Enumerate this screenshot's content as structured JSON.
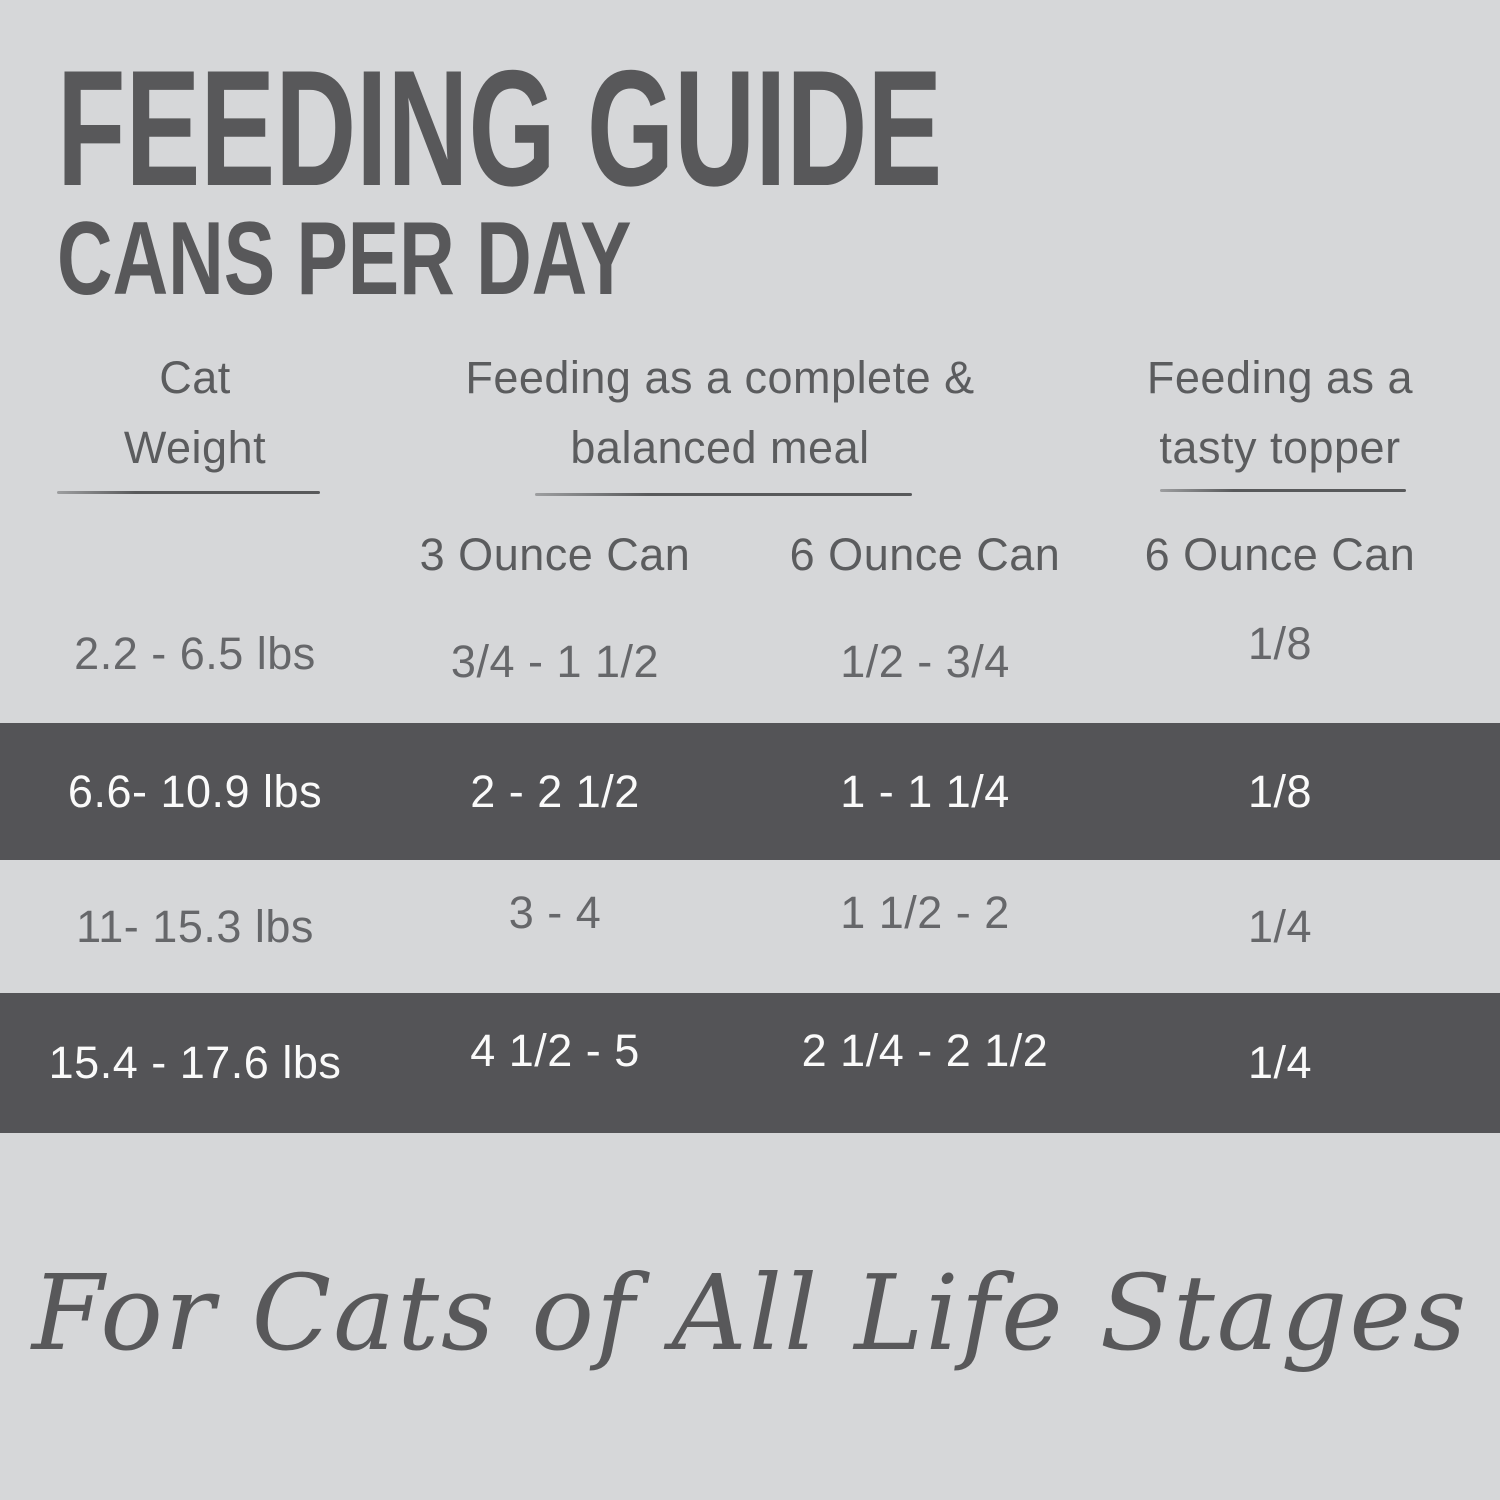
{
  "colors": {
    "bg": "#d6d7d9",
    "band": "#545457",
    "title": "#58585a",
    "header_text": "#5b5c5e",
    "cell_text": "#66676a",
    "cell_text_inverse": "#fafafa",
    "rule": "#58595b"
  },
  "title": {
    "main": "FEEDING GUIDE",
    "subtitle": "CANS PER DAY"
  },
  "table": {
    "group_headers": [
      {
        "lines": [
          "Cat",
          "Weight"
        ]
      },
      {
        "lines": [
          "Feeding as a complete &",
          "balanced meal"
        ]
      },
      {
        "lines": [
          "Feeding as a",
          "tasty topper"
        ]
      }
    ],
    "can_headers": [
      "3 Ounce Can",
      "6 Ounce Can",
      "6 Ounce Can"
    ],
    "rows": [
      {
        "weight": "2.2 - 6.5 lbs",
        "meal_3oz": "3/4 - 1 1/2",
        "meal_6oz": "1/2 - 3/4",
        "topper_6oz": "1/8",
        "highlighted": false
      },
      {
        "weight": "6.6- 10.9 lbs",
        "meal_3oz": "2 - 2 1/2",
        "meal_6oz": "1 - 1 1/4",
        "topper_6oz": "1/8",
        "highlighted": true
      },
      {
        "weight": "11- 15.3 lbs",
        "meal_3oz": "3 - 4",
        "meal_6oz": "1 1/2 - 2",
        "topper_6oz": "1/4",
        "highlighted": false
      },
      {
        "weight": "15.4 - 17.6 lbs",
        "meal_3oz": "4 1/2 - 5",
        "meal_6oz": "2 1/4 - 2 1/2",
        "topper_6oz": "1/4",
        "highlighted": true
      }
    ]
  },
  "footer": {
    "tagline": "For Cats of All Life Stages"
  },
  "chart_data": {
    "type": "table",
    "title": "FEEDING GUIDE",
    "subtitle": "CANS PER DAY",
    "columns": [
      "Cat Weight",
      "Feeding as a complete & balanced meal — 3 Ounce Can",
      "Feeding as a complete & balanced meal — 6 Ounce Can",
      "Feeding as a tasty topper — 6 Ounce Can"
    ],
    "rows": [
      [
        "2.2 - 6.5 lbs",
        "3/4 - 1 1/2",
        "1/2 - 3/4",
        "1/8"
      ],
      [
        "6.6- 10.9 lbs",
        "2 - 2 1/2",
        "1 - 1 1/4",
        "1/8"
      ],
      [
        "11- 15.3 lbs",
        "3 - 4",
        "1 1/2 - 2",
        "1/4"
      ],
      [
        "15.4 - 17.6 lbs",
        "4 1/2 - 5",
        "2 1/4 - 2 1/2",
        "1/4"
      ]
    ],
    "highlighted_rows": [
      1,
      3
    ],
    "footnote": "For Cats of All Life Stages"
  }
}
